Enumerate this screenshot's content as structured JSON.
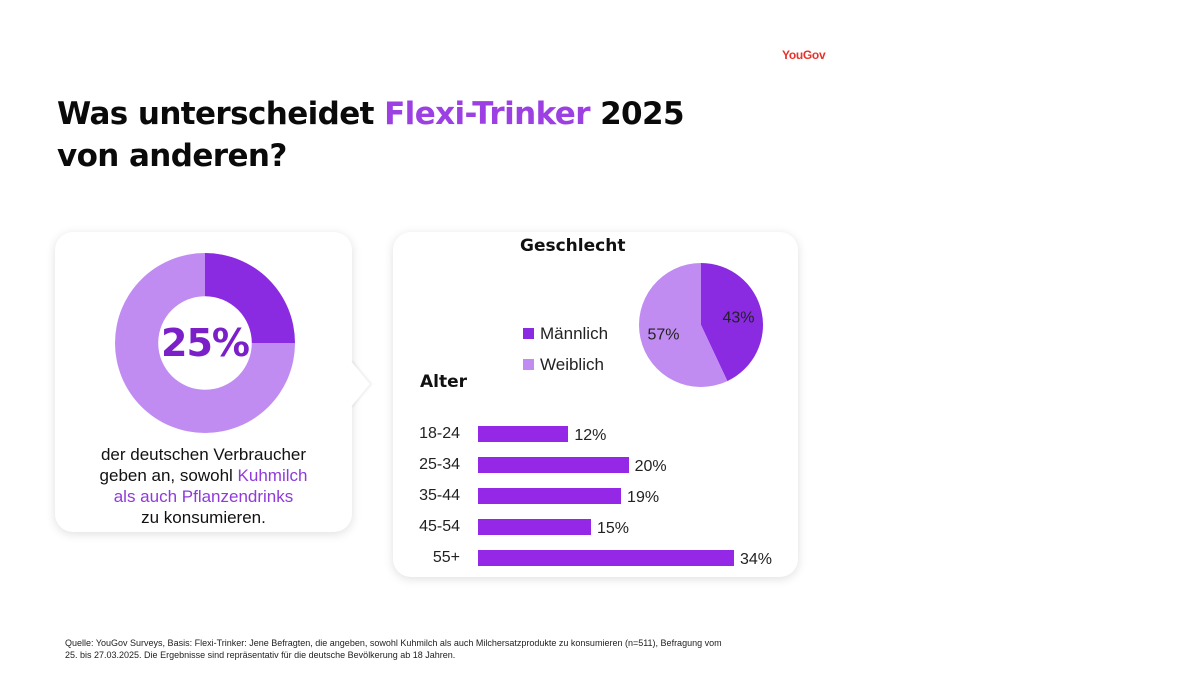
{
  "brand": {
    "logo": "YouGov"
  },
  "title": {
    "part1": "Was unterscheidet ",
    "accent": "Flexi-Trinker",
    "part2": " 2025",
    "line2": "von anderen?"
  },
  "summary": {
    "percent_label": "25%",
    "caption_line1": "der deutschen Verbraucher",
    "caption_line2_pre": "geben an, sowohl ",
    "caption_line2_hl": "Kuhmilch",
    "caption_line3_hl": "als auch Pflanzendrinks",
    "caption_line4": "zu konsumieren."
  },
  "footer": {
    "line1": "Quelle: YouGov Surveys, Basis: Flexi-Trinker: Jene Befragten, die angeben, sowohl Kuhmilch als auch Milchersatzprodukte zu konsumieren (n=511), Befragung vom",
    "line2": "25. bis 27.03.2025. Die Ergebnisse sind repräsentativ für die deutsche Bevölkerung ab 18 Jahren."
  },
  "colors": {
    "dark_purple": "#8a2be2",
    "light_purple": "#c08cf2",
    "bar_purple": "#9527e6",
    "accent_text": "#9c3fe3",
    "logo_red": "#e8312a"
  },
  "chart_data": [
    {
      "type": "pie",
      "variant": "donut",
      "values": [
        25,
        75
      ],
      "colors": [
        "#8a2be2",
        "#c08cf2"
      ],
      "center_label": "25%"
    },
    {
      "type": "pie",
      "title": "Geschlecht",
      "categories": [
        "Männlich",
        "Weiblich"
      ],
      "values": [
        43,
        57
      ],
      "labels": [
        "43%",
        "57%"
      ],
      "colors": [
        "#8a2be2",
        "#c08cf2"
      ],
      "legend": "left"
    },
    {
      "type": "bar",
      "orientation": "horizontal",
      "title": "Alter",
      "categories": [
        "18-24",
        "25-34",
        "35-44",
        "45-54",
        "55+"
      ],
      "values": [
        12,
        20,
        19,
        15,
        34
      ],
      "labels": [
        "12%",
        "20%",
        "19%",
        "15%",
        "34%"
      ],
      "xlim": [
        0,
        34
      ],
      "grid": false
    }
  ]
}
